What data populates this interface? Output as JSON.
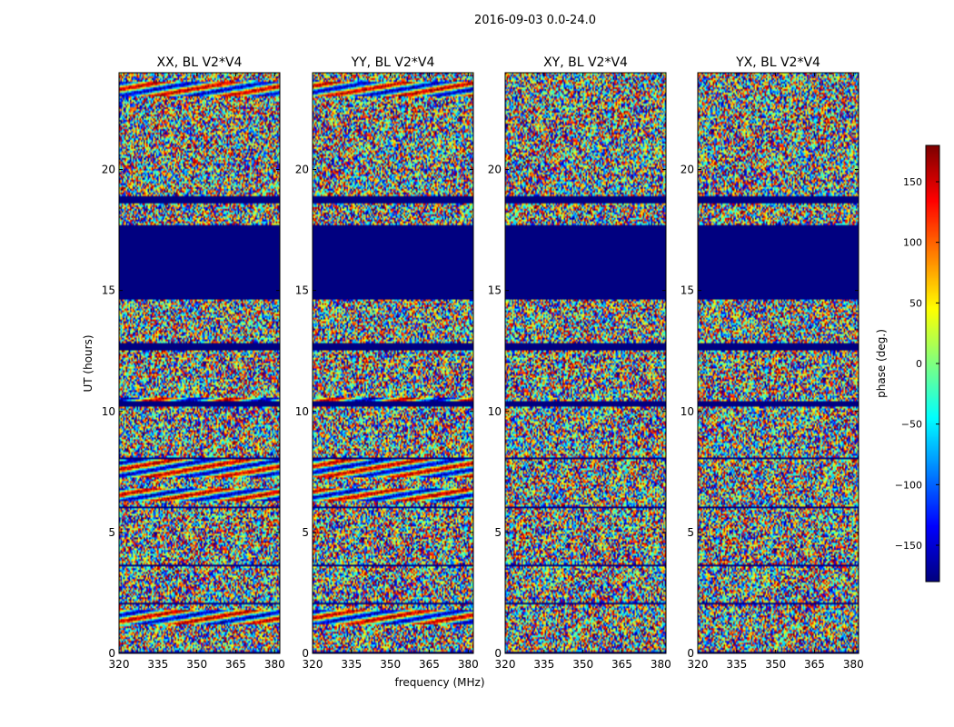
{
  "chart_data": {
    "type": "heatmap",
    "title": "2016-09-03 0.0-24.0",
    "xlabel": "frequency (MHz)",
    "ylabel": "UT (hours)",
    "xlim": [
      320,
      382
    ],
    "ylim": [
      0,
      24
    ],
    "x_ticks": [
      320,
      335,
      350,
      365,
      380
    ],
    "y_ticks": [
      0,
      5,
      10,
      15,
      20
    ],
    "panels": [
      {
        "title": "XX, BL V2*V4"
      },
      {
        "title": "YY, BL V2*V4"
      },
      {
        "title": "XY, BL V2*V4"
      },
      {
        "title": "YX, BL V2*V4"
      }
    ],
    "colorbar": {
      "label": "phase (deg.)",
      "range": [
        -180,
        180
      ],
      "ticks": [
        -150,
        -100,
        -50,
        0,
        50,
        100,
        150
      ],
      "colormap": "jet"
    },
    "flagged_bands_hours": [
      [
        14.6,
        17.7
      ],
      [
        18.6,
        18.9
      ],
      [
        12.5,
        12.8
      ],
      [
        10.2,
        10.4
      ],
      [
        8.0,
        8.1
      ],
      [
        6.0,
        6.1
      ],
      [
        3.6,
        3.7
      ],
      [
        2.0,
        2.1
      ],
      [
        0.0,
        0.05
      ]
    ],
    "stripe_bands_hours": [
      [
        23.0,
        23.6
      ],
      [
        7.3,
        8.0
      ],
      [
        6.3,
        6.8
      ],
      [
        1.2,
        1.8
      ],
      [
        10.3,
        10.6
      ]
    ],
    "colors": {
      "flagged": "#00007f"
    }
  }
}
